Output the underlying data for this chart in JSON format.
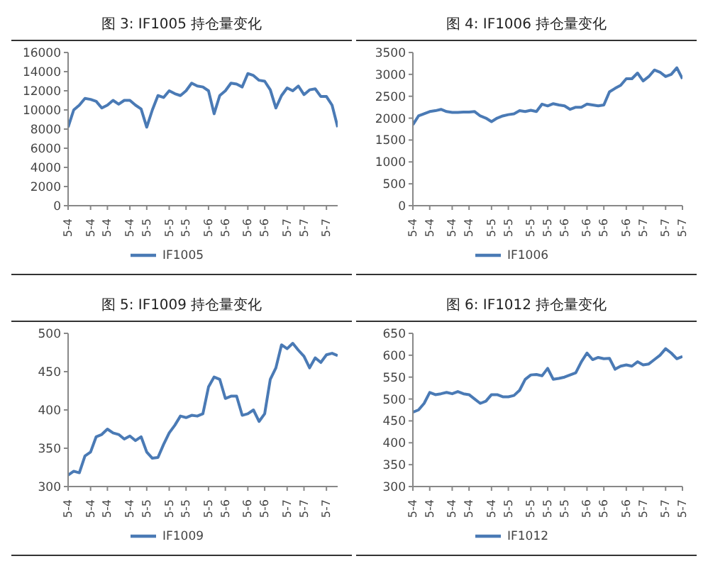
{
  "chart_data": [
    {
      "type": "line",
      "title": "图 3:  IF1005 持仓量变化",
      "categories": [
        "5-4",
        null,
        null,
        null,
        "5-4",
        null,
        null,
        "5-4",
        null,
        null,
        null,
        "5-4",
        null,
        null,
        "5-5",
        null,
        null,
        null,
        "5-5",
        null,
        null,
        "5-5",
        null,
        null,
        null,
        "5-6",
        null,
        null,
        "5-6",
        null,
        null,
        null,
        "5-6",
        null,
        null,
        "5-6",
        null,
        null,
        null,
        "5-7",
        null,
        null,
        "5-7",
        null,
        null,
        null,
        "5-7",
        null,
        null
      ],
      "series": [
        {
          "name": "IF1005",
          "color": "#4a7ab5",
          "values": [
            8200,
            10000,
            10500,
            11200,
            11100,
            10900,
            10200,
            10500,
            11000,
            10600,
            11000,
            11000,
            10500,
            10100,
            8200,
            10000,
            11500,
            11300,
            12000,
            11700,
            11500,
            12000,
            12800,
            12500,
            12400,
            12000,
            9600,
            11500,
            12000,
            12800,
            12700,
            12400,
            13800,
            13600,
            13100,
            13000,
            12100,
            10200,
            11500,
            12300,
            12000,
            12500,
            11600,
            12100,
            12200,
            11400,
            11400,
            10500,
            8200
          ]
        }
      ],
      "ylim": [
        0,
        16000
      ],
      "yticks": [
        0,
        2000,
        4000,
        6000,
        8000,
        10000,
        12000,
        14000,
        16000
      ],
      "grid": false,
      "legend": "bottom",
      "marker": "none",
      "line_style": "solid"
    },
    {
      "type": "line",
      "title": "图 4:  IF1006 持仓量变化",
      "categories": [
        "5-4",
        null,
        null,
        "5-4",
        null,
        null,
        null,
        "5-4",
        null,
        null,
        "5-4",
        null,
        null,
        null,
        "5-5",
        null,
        null,
        "5-5",
        null,
        null,
        null,
        "5-5",
        null,
        null,
        "5-5",
        null,
        null,
        "5-6",
        null,
        null,
        null,
        "5-6",
        null,
        null,
        "5-6",
        null,
        null,
        null,
        "5-6",
        null,
        null,
        "5-7",
        null,
        null,
        null,
        "5-7",
        null,
        null,
        "5-7"
      ],
      "series": [
        {
          "name": "IF1006",
          "color": "#4a7ab5",
          "values": [
            1850,
            2050,
            2100,
            2150,
            2170,
            2200,
            2150,
            2130,
            2130,
            2140,
            2140,
            2150,
            2050,
            2000,
            1920,
            2000,
            2050,
            2080,
            2100,
            2170,
            2150,
            2180,
            2150,
            2320,
            2280,
            2330,
            2300,
            2280,
            2200,
            2250,
            2250,
            2320,
            2300,
            2280,
            2300,
            2600,
            2680,
            2750,
            2900,
            2900,
            3030,
            2850,
            2950,
            3100,
            3050,
            2950,
            3000,
            3150,
            2900
          ]
        }
      ],
      "ylim": [
        0,
        3500
      ],
      "yticks": [
        0,
        500,
        1000,
        1500,
        2000,
        2500,
        3000,
        3500
      ],
      "grid": false,
      "legend": "bottom",
      "marker": "none",
      "line_style": "solid"
    },
    {
      "type": "line",
      "title": "图 5:  IF1009 持仓量变化",
      "categories": [
        "5-4",
        null,
        null,
        null,
        "5-4",
        null,
        null,
        "5-4",
        null,
        null,
        null,
        "5-4",
        null,
        null,
        "5-5",
        null,
        null,
        null,
        "5-5",
        null,
        null,
        "5-5",
        null,
        null,
        null,
        "5-5",
        null,
        null,
        "5-6",
        null,
        null,
        null,
        "5-6",
        null,
        null,
        "5-6",
        null,
        null,
        null,
        "5-7",
        null,
        null,
        "5-7",
        null,
        null,
        null,
        "5-7",
        null,
        null
      ],
      "series": [
        {
          "name": "IF1009",
          "color": "#4a7ab5",
          "values": [
            315,
            320,
            318,
            340,
            345,
            365,
            368,
            375,
            370,
            368,
            362,
            366,
            360,
            365,
            345,
            337,
            338,
            355,
            370,
            380,
            392,
            390,
            393,
            392,
            395,
            430,
            443,
            440,
            415,
            418,
            418,
            393,
            395,
            400,
            385,
            395,
            440,
            455,
            485,
            480,
            487,
            478,
            470,
            455,
            468,
            462,
            472,
            474,
            471
          ]
        }
      ],
      "ylim": [
        300,
        500
      ],
      "yticks": [
        300,
        350,
        400,
        450,
        500
      ],
      "grid": false,
      "legend": "bottom",
      "marker": "none",
      "line_style": "solid"
    },
    {
      "type": "line",
      "title": "图 6:  IF1012 持仓量变化",
      "categories": [
        "5-4",
        null,
        null,
        "5-4",
        null,
        null,
        null,
        "5-4",
        null,
        null,
        "5-4",
        null,
        null,
        null,
        "5-4",
        null,
        null,
        "5-5",
        null,
        null,
        null,
        "5-5",
        null,
        null,
        "5-5",
        null,
        null,
        "5-5",
        null,
        null,
        null,
        "5-6",
        null,
        null,
        "5-6",
        null,
        null,
        null,
        "5-6",
        null,
        null,
        "5-7",
        null,
        null,
        null,
        "5-7",
        null,
        null,
        "5-7"
      ],
      "series": [
        {
          "name": "IF1012",
          "color": "#4a7ab5",
          "values": [
            470,
            475,
            490,
            515,
            510,
            512,
            515,
            512,
            517,
            512,
            510,
            500,
            490,
            495,
            510,
            510,
            505,
            505,
            508,
            520,
            545,
            555,
            556,
            553,
            570,
            545,
            547,
            550,
            555,
            560,
            585,
            605,
            590,
            595,
            592,
            593,
            568,
            575,
            578,
            575,
            585,
            578,
            580,
            590,
            600,
            615,
            605,
            592,
            597
          ]
        }
      ],
      "ylim": [
        300,
        650
      ],
      "yticks": [
        300,
        350,
        400,
        450,
        500,
        550,
        600,
        650
      ],
      "grid": false,
      "legend": "bottom",
      "marker": "none",
      "line_style": "solid"
    }
  ]
}
